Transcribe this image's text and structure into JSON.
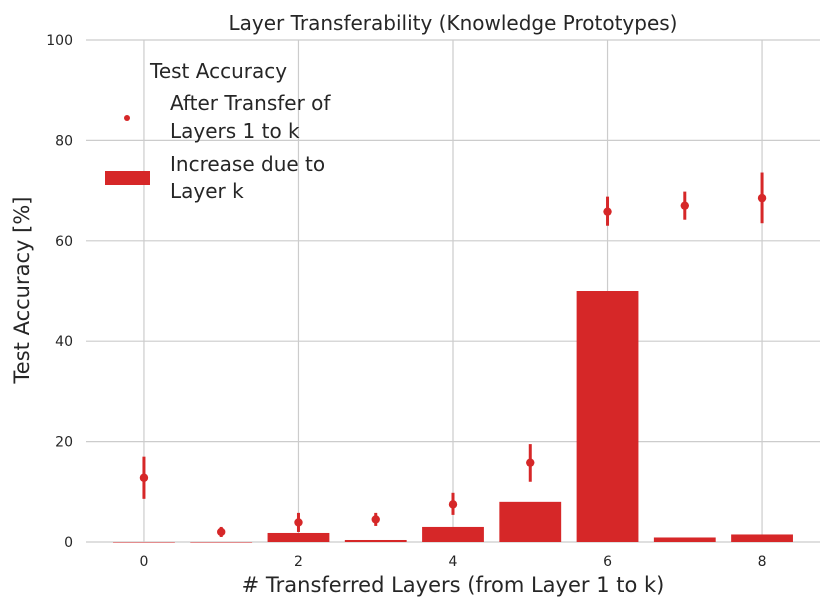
{
  "chart_data": {
    "type": "bar",
    "title": "Layer Transferability (Knowledge Prototypes)",
    "xlabel": "# Transferred Layers (from Layer 1 to k)",
    "ylabel": "Test Accuracy [%]",
    "xlim": [
      -0.75,
      8.75
    ],
    "ylim": [
      0,
      100
    ],
    "xticks": [
      0,
      2,
      4,
      6,
      8
    ],
    "yticks": [
      0,
      20,
      40,
      60,
      80,
      100
    ],
    "grid": true,
    "legend_position": "top-left",
    "color": "#d62728",
    "legend": {
      "title": "Test Accuracy",
      "point_label_lines": [
        "After Transfer of",
        "Layers 1 to k"
      ],
      "bar_label_lines": [
        "Increase due to",
        "Layer k"
      ]
    },
    "x": [
      0,
      1,
      2,
      3,
      4,
      5,
      6,
      7,
      8
    ],
    "bars": [
      0,
      0,
      1.8,
      0.4,
      3.0,
      8.0,
      50.0,
      0.9,
      1.5
    ],
    "points": [
      {
        "x": 0,
        "y": 12.8,
        "err_low": 8.6,
        "err_high": 17.0
      },
      {
        "x": 1,
        "y": 2.0,
        "err_low": 1.0,
        "err_high": 3.0
      },
      {
        "x": 2,
        "y": 3.9,
        "err_low": 2.0,
        "err_high": 5.8
      },
      {
        "x": 3,
        "y": 4.5,
        "err_low": 3.2,
        "err_high": 5.8
      },
      {
        "x": 4,
        "y": 7.5,
        "err_low": 5.4,
        "err_high": 9.8
      },
      {
        "x": 5,
        "y": 15.8,
        "err_low": 12.0,
        "err_high": 19.5
      },
      {
        "x": 6,
        "y": 65.8,
        "err_low": 63.0,
        "err_high": 68.8
      },
      {
        "x": 7,
        "y": 67.0,
        "err_low": 64.2,
        "err_high": 69.8
      },
      {
        "x": 8,
        "y": 68.5,
        "err_low": 63.5,
        "err_high": 73.6
      }
    ]
  }
}
